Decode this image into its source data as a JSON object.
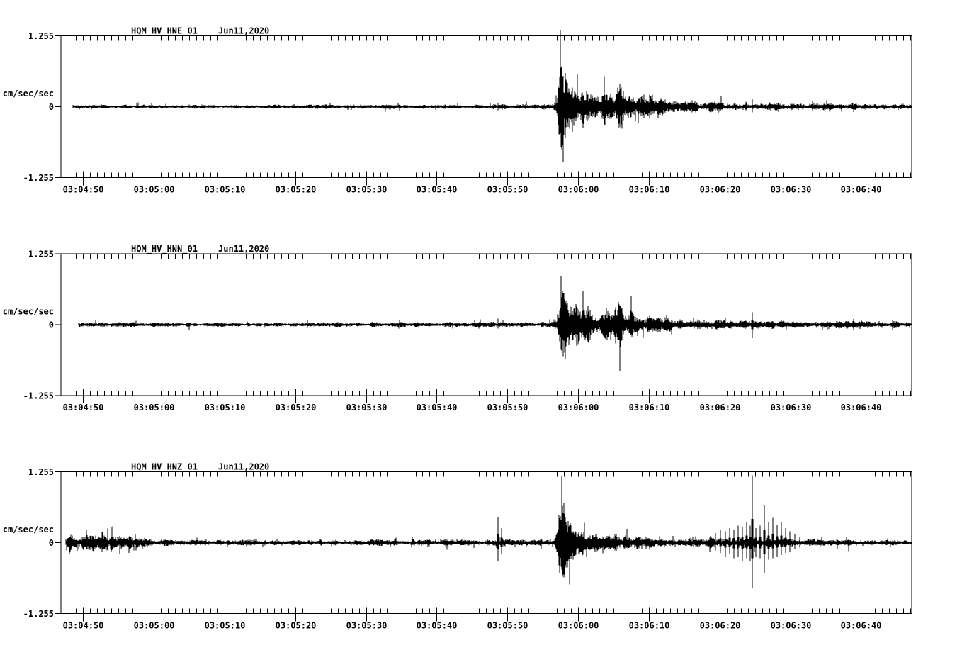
{
  "figure": {
    "background_color": "#ffffff",
    "trace_color": "#000000",
    "text_color": "#000000"
  },
  "chart_data": {
    "type": "line",
    "subtype": "seismogram-3-component",
    "ylabel": "cm/sec/sec",
    "ylim": [
      -1.255,
      1.255
    ],
    "y_axis": {
      "max_label": "1.255",
      "zero_label": "0",
      "min_label": "-1.255",
      "units": "cm/sec/sec"
    },
    "x_tick_labels": [
      "03:04:50",
      "03:05:00",
      "03:05:10",
      "03:05:20",
      "03:05:30",
      "03:05:40",
      "03:05:50",
      "03:06:00",
      "03:06:10",
      "03:06:20",
      "03:06:30",
      "03:06:40"
    ],
    "x_major_interval_sec": 10,
    "x_minor_interval_sec": 1,
    "channels": [
      {
        "station": "HQM_HV_HNE_01",
        "date": "Jun11,2020",
        "trace_start_sec": 1.7,
        "seed": 11,
        "envelope": [
          [
            1.7,
            0.025
          ],
          [
            20,
            0.024
          ],
          [
            40,
            0.026
          ],
          [
            55,
            0.025
          ],
          [
            60,
            0.03
          ],
          [
            62,
            0.032
          ],
          [
            64,
            0.027
          ],
          [
            69.6,
            0.03
          ],
          [
            70.1,
            0.09
          ],
          [
            70.5,
            0.45
          ],
          [
            70.9,
            0.62
          ],
          [
            71.4,
            0.5
          ],
          [
            72,
            0.3
          ],
          [
            72.8,
            0.25
          ],
          [
            74,
            0.2
          ],
          [
            75.5,
            0.22
          ],
          [
            76.5,
            0.19
          ],
          [
            78,
            0.24
          ],
          [
            79,
            0.26
          ],
          [
            80,
            0.18
          ],
          [
            81.5,
            0.15
          ],
          [
            83,
            0.13
          ],
          [
            85,
            0.1
          ],
          [
            87,
            0.09
          ],
          [
            88.5,
            0.1
          ],
          [
            90,
            0.07
          ],
          [
            92,
            0.06
          ],
          [
            95,
            0.05
          ],
          [
            98,
            0.045
          ],
          [
            101,
            0.05
          ],
          [
            103,
            0.042
          ],
          [
            107,
            0.04
          ],
          [
            110,
            0.038
          ],
          [
            114,
            0.04
          ],
          [
            120.2,
            0.035
          ]
        ],
        "spikes": [
          [
            61.8,
            0.07,
            -0.06
          ],
          [
            70.85,
            0.72,
            -0.6
          ],
          [
            71.05,
            0.55,
            -0.99
          ],
          [
            71.3,
            0.6,
            -0.55
          ],
          [
            97.8,
            0.13,
            -0.1
          ],
          [
            106.3,
            0.1,
            -0.08
          ]
        ]
      },
      {
        "station": "HQM_HV_HNN_01",
        "date": "Jun11,2020",
        "trace_start_sec": 2.5,
        "seed": 23,
        "envelope": [
          [
            2.5,
            0.028
          ],
          [
            20,
            0.027
          ],
          [
            40,
            0.028
          ],
          [
            58,
            0.03
          ],
          [
            61,
            0.032
          ],
          [
            65,
            0.03
          ],
          [
            69.7,
            0.032
          ],
          [
            70.2,
            0.12
          ],
          [
            70.6,
            0.42
          ],
          [
            71,
            0.5
          ],
          [
            71.6,
            0.42
          ],
          [
            72.3,
            0.32
          ],
          [
            73.5,
            0.25
          ],
          [
            75,
            0.2
          ],
          [
            76.5,
            0.17
          ],
          [
            77.8,
            0.22
          ],
          [
            78.8,
            0.26
          ],
          [
            79.8,
            0.22
          ],
          [
            81,
            0.15
          ],
          [
            82.5,
            0.12
          ],
          [
            84,
            0.1
          ],
          [
            86,
            0.08
          ],
          [
            88,
            0.07
          ],
          [
            91,
            0.06
          ],
          [
            94,
            0.055
          ],
          [
            97,
            0.055
          ],
          [
            100,
            0.052
          ],
          [
            104,
            0.048
          ],
          [
            108,
            0.042
          ],
          [
            112,
            0.045
          ],
          [
            116,
            0.04
          ],
          [
            120.2,
            0.04
          ]
        ],
        "spikes": [
          [
            61.8,
            0.11,
            -0.07
          ],
          [
            70.75,
            0.87,
            -0.45
          ],
          [
            71.0,
            0.5,
            -0.56
          ],
          [
            71.25,
            0.45,
            -0.5
          ],
          [
            76.7,
            0.12,
            -0.1
          ],
          [
            97.8,
            0.22,
            -0.24
          ],
          [
            112.1,
            0.1,
            -0.09
          ]
        ]
      },
      {
        "station": "HQM_HV_HNZ_01",
        "date": "Jun11,2020",
        "trace_start_sec": 0.7,
        "seed": 37,
        "envelope": [
          [
            0.7,
            0.1
          ],
          [
            1.5,
            0.12
          ],
          [
            2.5,
            0.07
          ],
          [
            3.5,
            0.12
          ],
          [
            4.5,
            0.09
          ],
          [
            5.5,
            0.11
          ],
          [
            6.5,
            0.09
          ],
          [
            7.5,
            0.11
          ],
          [
            8.5,
            0.09
          ],
          [
            9.5,
            0.1
          ],
          [
            10.5,
            0.06
          ],
          [
            12,
            0.045
          ],
          [
            15,
            0.038
          ],
          [
            20,
            0.034
          ],
          [
            30,
            0.033
          ],
          [
            40,
            0.034
          ],
          [
            48,
            0.038
          ],
          [
            54,
            0.042
          ],
          [
            59,
            0.045
          ],
          [
            62.5,
            0.05
          ],
          [
            66,
            0.045
          ],
          [
            69.5,
            0.055
          ],
          [
            70.1,
            0.15
          ],
          [
            70.5,
            0.38
          ],
          [
            70.9,
            0.45
          ],
          [
            71.4,
            0.38
          ],
          [
            72,
            0.28
          ],
          [
            73,
            0.2
          ],
          [
            74.2,
            0.16
          ],
          [
            75.5,
            0.13
          ],
          [
            77,
            0.11
          ],
          [
            78.5,
            0.1
          ],
          [
            80,
            0.09
          ],
          [
            82,
            0.075
          ],
          [
            84.5,
            0.065
          ],
          [
            87,
            0.06
          ],
          [
            89.5,
            0.06
          ],
          [
            91.5,
            0.065
          ],
          [
            93,
            0.07
          ],
          [
            95,
            0.075
          ],
          [
            97,
            0.08
          ],
          [
            99,
            0.075
          ],
          [
            101,
            0.07
          ],
          [
            103,
            0.06
          ],
          [
            105,
            0.05
          ],
          [
            107,
            0.045
          ],
          [
            109,
            0.04
          ],
          [
            112,
            0.037
          ],
          [
            116,
            0.036
          ],
          [
            120.2,
            0.035
          ]
        ],
        "spikes": [
          [
            1.4,
            0.14,
            -0.12
          ],
          [
            3.7,
            0.13,
            -0.1
          ],
          [
            5.8,
            0.18,
            -0.16
          ],
          [
            6.6,
            0.25,
            -0.12
          ],
          [
            8.3,
            0.12,
            -0.2
          ],
          [
            9.6,
            0.1,
            -0.18
          ],
          [
            61.8,
            0.45,
            -0.33
          ],
          [
            62.3,
            0.26,
            -0.2
          ],
          [
            70.8,
            0.64,
            -0.48
          ],
          [
            71.1,
            0.5,
            -0.62
          ],
          [
            71.35,
            0.42,
            -0.4
          ],
          [
            91.9,
            0.12,
            -0.1
          ],
          [
            92.6,
            0.17,
            -0.14
          ],
          [
            93.3,
            0.22,
            -0.18
          ],
          [
            94,
            0.2,
            -0.26
          ],
          [
            94.6,
            0.26,
            -0.2
          ],
          [
            95.2,
            0.23,
            -0.28
          ],
          [
            95.8,
            0.3,
            -0.26
          ],
          [
            96.4,
            0.28,
            -0.32
          ],
          [
            97,
            0.36,
            -0.28
          ],
          [
            97.45,
            0.3,
            -0.33
          ],
          [
            97.75,
            1.2,
            -0.8
          ],
          [
            98.3,
            0.26,
            -0.26
          ],
          [
            98.9,
            0.3,
            -0.28
          ],
          [
            99.5,
            0.67,
            -0.55
          ],
          [
            100.1,
            0.36,
            -0.3
          ],
          [
            100.7,
            0.44,
            -0.28
          ],
          [
            101.3,
            0.32,
            -0.26
          ],
          [
            101.9,
            0.36,
            -0.22
          ],
          [
            102.5,
            0.26,
            -0.18
          ],
          [
            103.1,
            0.2,
            -0.16
          ],
          [
            103.8,
            0.16,
            -0.12
          ],
          [
            104.5,
            0.11,
            -0.09
          ]
        ]
      }
    ]
  }
}
